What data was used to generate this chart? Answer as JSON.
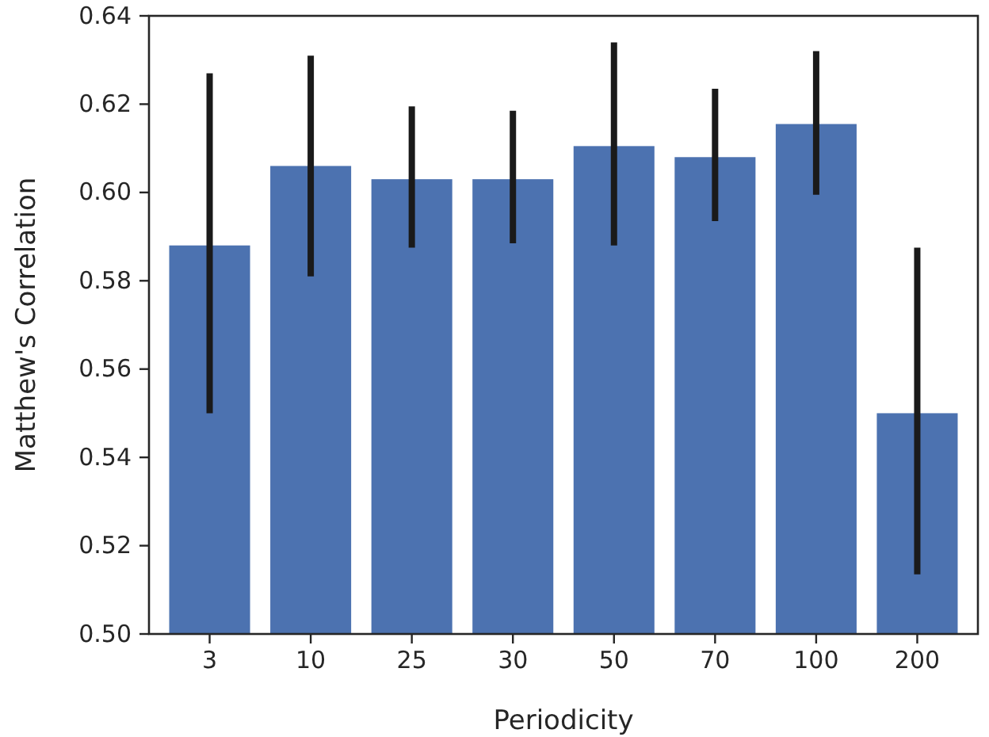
{
  "chart_data": {
    "type": "bar",
    "xlabel": "Periodicity",
    "ylabel": "Matthew's Correlation",
    "categories": [
      "3",
      "10",
      "25",
      "30",
      "50",
      "70",
      "100",
      "200"
    ],
    "values": [
      0.588,
      0.606,
      0.603,
      0.603,
      0.6105,
      0.608,
      0.6155,
      0.55
    ],
    "errors": [
      [
        0.55,
        0.627
      ],
      [
        0.581,
        0.631
      ],
      [
        0.5875,
        0.6195
      ],
      [
        0.5885,
        0.6185
      ],
      [
        0.588,
        0.634
      ],
      [
        0.5935,
        0.6235
      ],
      [
        0.5995,
        0.632
      ],
      [
        0.5135,
        0.5875
      ]
    ],
    "color": "#4c72b0",
    "ylim": [
      0.5,
      0.64
    ],
    "yticks": [
      {
        "value": 0.5,
        "label": "0.50"
      },
      {
        "value": 0.52,
        "label": "0.52"
      },
      {
        "value": 0.54,
        "label": "0.54"
      },
      {
        "value": 0.56,
        "label": "0.56"
      },
      {
        "value": 0.58,
        "label": "0.58"
      },
      {
        "value": 0.6,
        "label": "0.60"
      },
      {
        "value": 0.62,
        "label": "0.62"
      },
      {
        "value": 0.64,
        "label": "0.64"
      }
    ],
    "grid": false
  }
}
